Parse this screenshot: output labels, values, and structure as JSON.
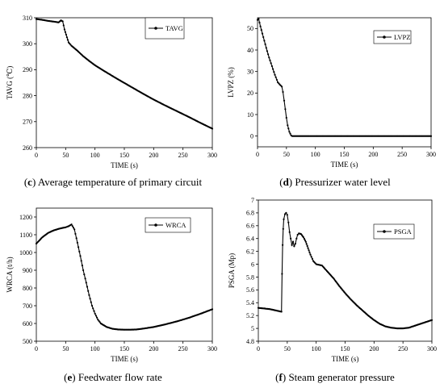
{
  "captions": {
    "c_letter": "c",
    "c_text": "Average temperature of primary circuit",
    "d_letter": "d",
    "d_text": "Pressurizer water level",
    "e_letter": "e",
    "e_text": "Feedwater flow rate",
    "f_letter": "f",
    "f_text": "Steam generator pressure"
  },
  "chart_data": [
    {
      "id": "c",
      "type": "line",
      "xlabel": "TIME (s)",
      "ylabel": "TAVG (℃)",
      "xlim": [
        0,
        300
      ],
      "ylim": [
        260,
        310
      ],
      "xticks": [
        0,
        50,
        100,
        150,
        200,
        250,
        300
      ],
      "yticks": [
        260,
        270,
        280,
        290,
        300,
        310
      ],
      "legend": "top-right",
      "series": [
        {
          "name": "TAVG",
          "x": [
            0,
            10,
            20,
            30,
            38,
            42,
            45,
            48,
            55,
            60,
            70,
            80,
            90,
            100,
            120,
            140,
            160,
            180,
            200,
            220,
            240,
            260,
            280,
            300
          ],
          "y": [
            309.5,
            309.2,
            308.8,
            308.5,
            308.2,
            309.0,
            308.6,
            305.5,
            300.5,
            299.2,
            297.3,
            295.2,
            293.4,
            291.7,
            288.9,
            286.2,
            283.6,
            281.0,
            278.5,
            276.2,
            274.0,
            271.8,
            269.5,
            267.3
          ]
        }
      ]
    },
    {
      "id": "d",
      "type": "line",
      "xlabel": "TIME (s)",
      "ylabel": "LVPZ (%)",
      "xlim": [
        0,
        300
      ],
      "ylim": [
        -5,
        55
      ],
      "xticks": [
        0,
        50,
        100,
        150,
        200,
        250,
        300
      ],
      "yticks": [
        0,
        10,
        20,
        30,
        40,
        50
      ],
      "legend": "top-right",
      "series": [
        {
          "name": "LVPZ",
          "x": [
            0,
            2,
            5,
            10,
            15,
            20,
            25,
            30,
            35,
            40,
            42,
            44,
            46,
            48,
            50,
            52,
            55,
            58,
            60,
            80,
            100,
            150,
            200,
            250,
            300
          ],
          "y": [
            54.0,
            54.5,
            51.0,
            46.0,
            41.0,
            36.5,
            32.5,
            28.5,
            25.0,
            23.5,
            23.0,
            20.5,
            16.5,
            12.5,
            8.5,
            5.0,
            2.0,
            0.3,
            0.0,
            0.0,
            0.0,
            0.0,
            0.0,
            0.0,
            0.0
          ]
        }
      ]
    },
    {
      "id": "e",
      "type": "line",
      "xlabel": "TIME (s)",
      "ylabel": "WRCA (t/h)",
      "xlim": [
        0,
        300
      ],
      "ylim": [
        500,
        1250
      ],
      "xticks": [
        0,
        50,
        100,
        150,
        200,
        250,
        300
      ],
      "yticks": [
        500,
        600,
        700,
        800,
        900,
        1000,
        1100,
        1200
      ],
      "legend": "top-right",
      "series": [
        {
          "name": "WRCA",
          "x": [
            0,
            10,
            20,
            30,
            40,
            50,
            55,
            60,
            65,
            70,
            75,
            80,
            85,
            90,
            95,
            100,
            105,
            110,
            120,
            130,
            140,
            150,
            160,
            170,
            180,
            200,
            220,
            240,
            260,
            280,
            300
          ],
          "y": [
            1050,
            1085,
            1110,
            1125,
            1135,
            1142,
            1148,
            1158,
            1130,
            1055,
            980,
            900,
            830,
            760,
            700,
            655,
            622,
            600,
            580,
            570,
            566,
            565,
            565,
            566,
            570,
            580,
            595,
            612,
            632,
            655,
            680
          ]
        }
      ]
    },
    {
      "id": "f",
      "type": "line",
      "xlabel": "TIME (s)",
      "ylabel": "PSGA (Mp)",
      "xlim": [
        0,
        300
      ],
      "ylim": [
        4.8,
        7.0
      ],
      "xticks": [
        0,
        50,
        100,
        150,
        200,
        250,
        300
      ],
      "yticks": [
        4.8,
        5.0,
        5.2,
        5.4,
        5.6,
        5.8,
        6.0,
        6.2,
        6.4,
        6.6,
        6.8,
        7.0
      ],
      "legend": "top-right",
      "series": [
        {
          "name": "PSGA",
          "x": [
            0,
            10,
            20,
            30,
            40,
            41,
            42,
            43,
            44,
            46,
            48,
            50,
            52,
            54,
            56,
            58,
            60,
            62,
            64,
            66,
            68,
            70,
            74,
            78,
            82,
            86,
            90,
            95,
            100,
            105,
            110,
            120,
            130,
            140,
            150,
            160,
            170,
            180,
            190,
            200,
            210,
            220,
            230,
            240,
            250,
            260,
            270,
            280,
            290,
            300
          ],
          "y": [
            5.32,
            5.31,
            5.3,
            5.28,
            5.26,
            5.85,
            6.3,
            6.55,
            6.7,
            6.78,
            6.8,
            6.77,
            6.65,
            6.5,
            6.4,
            6.3,
            6.35,
            6.28,
            6.32,
            6.4,
            6.46,
            6.48,
            6.47,
            6.42,
            6.35,
            6.25,
            6.15,
            6.05,
            6.0,
            5.99,
            5.98,
            5.88,
            5.78,
            5.66,
            5.55,
            5.45,
            5.36,
            5.28,
            5.2,
            5.13,
            5.07,
            5.03,
            5.01,
            5.0,
            5.0,
            5.01,
            5.04,
            5.07,
            5.1,
            5.13
          ]
        }
      ]
    }
  ]
}
